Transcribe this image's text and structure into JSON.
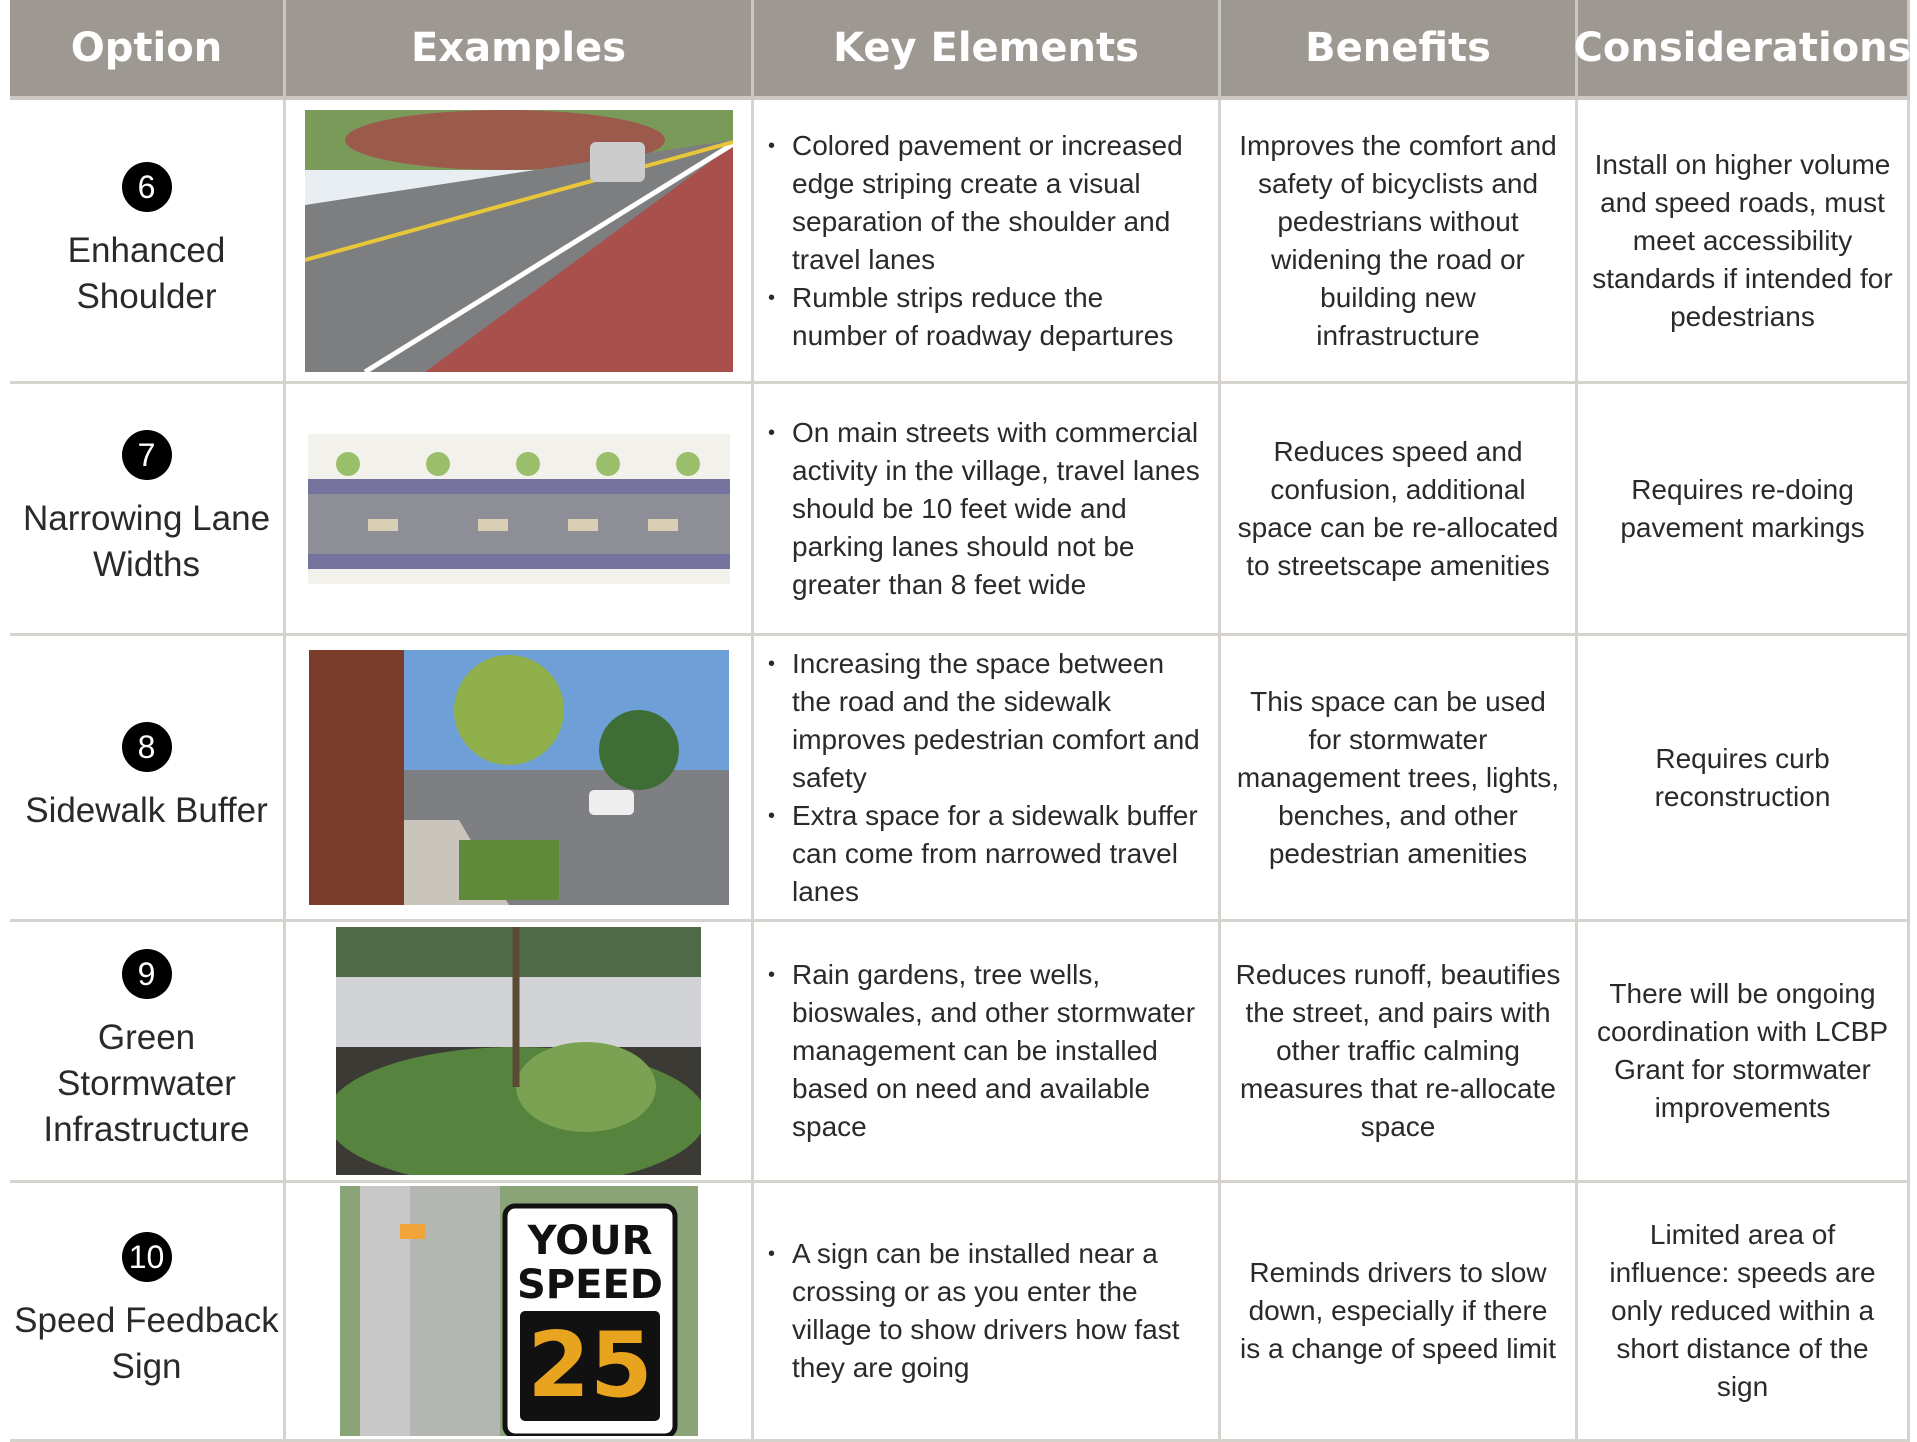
{
  "header": {
    "columns": [
      "Option",
      "Examples",
      "Key Elements",
      "Benefits",
      "Considerations"
    ]
  },
  "rows": [
    {
      "number": "6",
      "option": "Enhanced Shoulder",
      "key_elements": [
        "Colored pavement or increased edge striping create a visual separation of the shoulder and travel lanes",
        "Rumble strips reduce the number of roadway departures"
      ],
      "benefits": "Improves the comfort and safety of bicyclists and pedestrians without widening the road or building new infrastructure",
      "considerations": "Install on higher volume and speed roads, must meet accessibility standards if intended for pedestrians"
    },
    {
      "number": "7",
      "option": "Narrowing Lane Widths",
      "key_elements": [
        "On main streets with commercial activity in the village, travel lanes should be 10 feet wide and parking lanes should not be greater than 8 feet wide"
      ],
      "benefits": "Reduces speed and confusion, additional space can be re-allocated to streetscape amenities",
      "considerations": "Requires re-doing pavement markings"
    },
    {
      "number": "8",
      "option": "Sidewalk Buffer",
      "key_elements": [
        "Increasing the space between the road and the sidewalk improves pedestrian comfort and safety",
        "Extra space for a sidewalk buffer can come from narrowed travel lanes"
      ],
      "benefits": "This space can be used for stormwater management trees, lights, benches, and other pedestrian amenities",
      "considerations": "Requires curb reconstruction"
    },
    {
      "number": "9",
      "option": "Green Stormwater Infrastructure",
      "key_elements": [
        "Rain gardens, tree wells, bioswales, and other stormwater management can be installed based on need and available space"
      ],
      "benefits": "Reduces runoff, beautifies the street, and pairs with other traffic calming measures that re-allocate space",
      "considerations": "There will be ongoing coordination with LCBP Grant for stormwater improvements"
    },
    {
      "number": "10",
      "option": "Speed Feedback Sign",
      "key_elements": [
        "A sign can be installed near a crossing or as you enter the village to show drivers how fast they are going"
      ],
      "benefits": "Reminds drivers to slow down, especially if there is a change of speed limit",
      "considerations": "Limited area of influence: speeds are only reduced within a short distance of the sign",
      "sign": [
        "YOUR",
        "SPEED",
        "25"
      ]
    }
  ]
}
